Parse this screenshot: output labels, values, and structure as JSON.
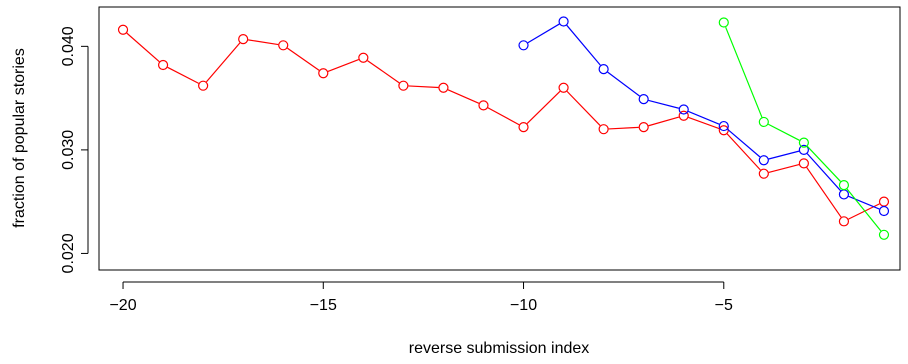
{
  "chart_data": {
    "type": "line",
    "xlabel": "reverse submission index",
    "ylabel": "fraction of popular stories",
    "xlim": [
      -20.6,
      -0.6
    ],
    "ylim": [
      0.0184,
      0.0438
    ],
    "x_ticks": [
      -20,
      -15,
      -10,
      -5
    ],
    "x_tick_labels": [
      "−20",
      "−15",
      "−10",
      "−5"
    ],
    "y_ticks": [
      0.02,
      0.03,
      0.04
    ],
    "y_tick_labels": [
      "0.020",
      "0.030",
      "0.040"
    ],
    "grid": false,
    "legend": "none",
    "series": [
      {
        "color": "#ff0000",
        "x": [
          -20,
          -19,
          -18,
          -17,
          -16,
          -15,
          -14,
          -13,
          -12,
          -11,
          -10,
          -9,
          -8,
          -7,
          -6,
          -5,
          -4,
          -3,
          -2,
          -1
        ],
        "values": [
          0.0416,
          0.0382,
          0.0362,
          0.0407,
          0.0401,
          0.0374,
          0.0389,
          0.0362,
          0.036,
          0.0343,
          0.0322,
          0.036,
          0.032,
          0.0322,
          0.0333,
          0.0319,
          0.0277,
          0.0287,
          0.0231,
          0.025
        ]
      },
      {
        "color": "#0000ff",
        "x": [
          -10,
          -9,
          -8,
          -7,
          -6,
          -5,
          -4,
          -3,
          -2,
          -1
        ],
        "values": [
          0.0401,
          0.0424,
          0.0378,
          0.0349,
          0.0339,
          0.0323,
          0.029,
          0.03,
          0.0257,
          0.0241
        ]
      },
      {
        "color": "#00ff00",
        "x": [
          -5,
          -4,
          -3,
          -2,
          -1
        ],
        "values": [
          0.0423,
          0.0327,
          0.0307,
          0.0266,
          0.0218
        ]
      }
    ]
  }
}
